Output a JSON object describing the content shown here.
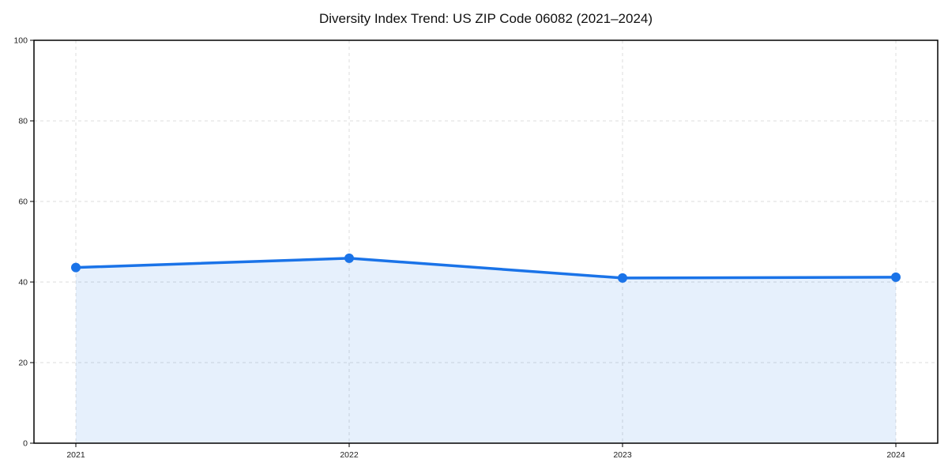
{
  "title": "Diversity Index Trend: US ZIP Code 06082 (2021–2024)",
  "colors": {
    "line": "#1a73e8",
    "marker": "#1a73e8",
    "fill": "rgba(26,115,232,0.11)",
    "grid": "#dcdcdc",
    "axis": "#000000",
    "tick_text": "#222222",
    "background": "#ffffff"
  },
  "chart_data": {
    "type": "area",
    "title": "Diversity Index Trend: US ZIP Code 06082 (2021–2024)",
    "categories": [
      "2021",
      "2022",
      "2023",
      "2024"
    ],
    "values": [
      43.6,
      45.9,
      41.0,
      41.2
    ],
    "xlabel": "",
    "ylabel": "",
    "ylim": [
      0,
      100
    ],
    "y_ticks": [
      0,
      20,
      40,
      60,
      80,
      100
    ],
    "grid": true,
    "grid_style": "dashed",
    "legend": false,
    "markers": true
  }
}
